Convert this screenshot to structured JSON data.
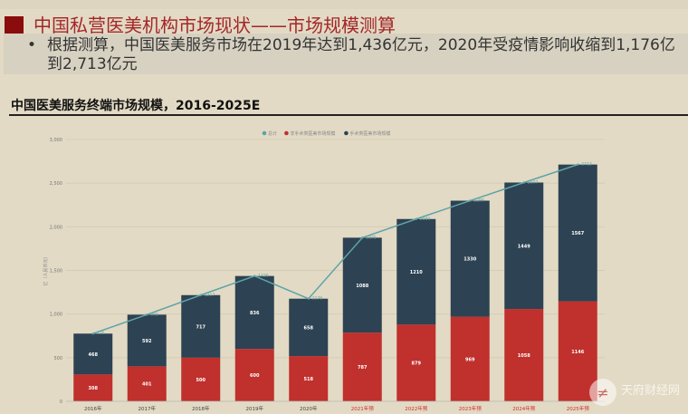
{
  "header": {
    "title": "中国私营医美机构市场现状——市场规模测算",
    "bullet_marker": "•",
    "bullet_line1": "根据测算，中国医美服务市场在2019年达到1,436亿元，2020年受疫情影响收缩到1,176亿",
    "bullet_line2": "到2,713亿元"
  },
  "watermark": "天府财经网",
  "chart_data": {
    "type": "bar",
    "stacked": true,
    "title": "中国医美服务终端市场规模，2016-2025E",
    "ylabel": "亿（人民币元）",
    "xlabel": "",
    "ylim": [
      0,
      3000
    ],
    "yticks": [
      "0",
      "500",
      "1,000",
      "1,500",
      "2,000",
      "2,500",
      "3,000"
    ],
    "grid": true,
    "legend_position": "top",
    "categories": [
      "2016年",
      "2017年",
      "2018年",
      "2019年",
      "2020年",
      "2021年预",
      "2022年预",
      "2023年预",
      "2024年预",
      "2025年预"
    ],
    "forecast_label_color": "#d42a2a",
    "series": [
      {
        "name": "非手术类医美市场规模",
        "type": "bar",
        "color": "#c0302c",
        "values": [
          308,
          401,
          500,
          600,
          518,
          787,
          879,
          969,
          1058,
          1146
        ]
      },
      {
        "name": "手术类医美市场规模",
        "type": "bar",
        "color": "#2d4252",
        "values": [
          468,
          592,
          717,
          836,
          658,
          1088,
          1210,
          1330,
          1449,
          1567
        ]
      },
      {
        "name": "总计",
        "type": "line",
        "color": "#5fa3a8",
        "values": [
          776,
          993,
          1217,
          1436,
          1176,
          1875,
          2089,
          2299,
          2507,
          2713
        ]
      }
    ]
  }
}
